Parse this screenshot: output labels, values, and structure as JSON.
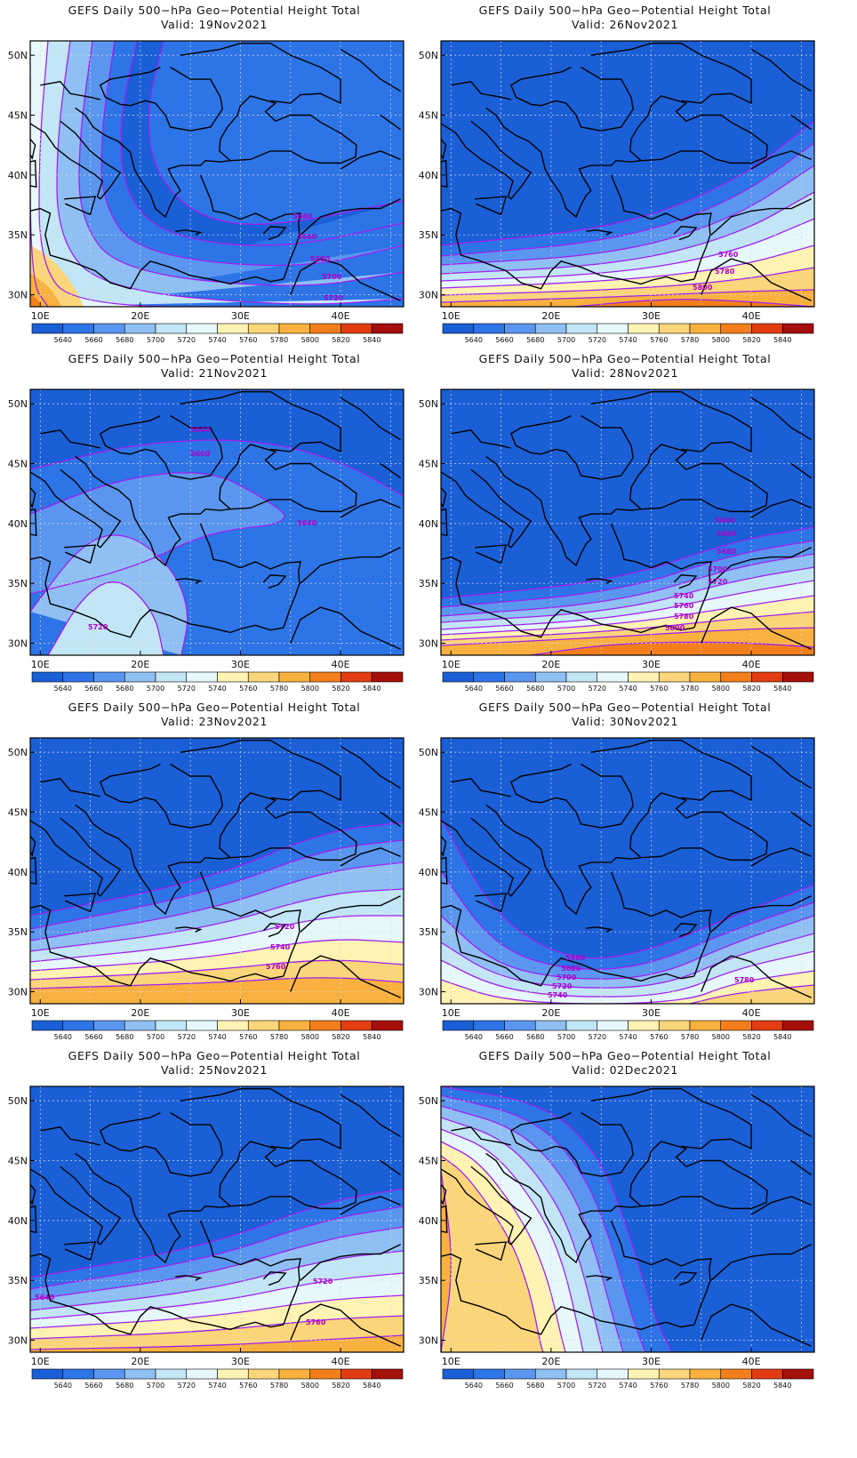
{
  "colors": {
    "ocean_bg": "#1a5fd6",
    "contour_line": "#a020f0",
    "coastline": "#000000",
    "gridline": "#d8d8d8"
  },
  "colorbar": {
    "levels": [
      "5640",
      "5660",
      "5680",
      "5700",
      "5720",
      "5740",
      "5760",
      "5780",
      "5800",
      "5820",
      "5840"
    ],
    "colors": [
      "#1a5fd6",
      "#2d74e6",
      "#5a96ef",
      "#8fbff3",
      "#c2e6f6",
      "#e6f8fb",
      "#fff3b3",
      "#fbd57a",
      "#f8b13f",
      "#f27f1c",
      "#e23c12",
      "#a50f0c"
    ]
  },
  "axes": {
    "lon_labels": [
      "10E",
      "20E",
      "30E",
      "40E"
    ],
    "lat_labels": [
      "50N",
      "45N",
      "40N",
      "35N",
      "30N"
    ]
  },
  "panels": [
    {
      "title": "GEFS Daily 500−hPa Geo−Potential Height Total",
      "valid": "Valid: 19Nov2021",
      "contour_labels": [
        "5640",
        "5660",
        "5680",
        "5700",
        "5720"
      ]
    },
    {
      "title": "GEFS Daily 500−hPa Geo−Potential Height Total",
      "valid": "Valid: 26Nov2021",
      "contour_labels": [
        "5760",
        "5780",
        "5800"
      ]
    },
    {
      "title": "GEFS Daily 500−hPa Geo−Potential Height Total",
      "valid": "Valid: 21Nov2021",
      "contour_labels": [
        "5640",
        "5660",
        "5640",
        "5720"
      ]
    },
    {
      "title": "GEFS Daily 500−hPa Geo−Potential Height Total",
      "valid": "Valid: 28Nov2021",
      "contour_labels": [
        "5640",
        "5660",
        "5680",
        "5700",
        "5720",
        "5740",
        "5760",
        "5780",
        "5800"
      ]
    },
    {
      "title": "GEFS Daily 500−hPa Geo−Potential Height Total",
      "valid": "Valid: 23Nov2021",
      "contour_labels": [
        "5720",
        "5740",
        "5760"
      ]
    },
    {
      "title": "GEFS Daily 500−hPa Geo−Potential Height Total",
      "valid": "Valid: 30Nov2021",
      "contour_labels": [
        "5660",
        "5680",
        "5700",
        "5720",
        "5740",
        "5780"
      ]
    },
    {
      "title": "GEFS Daily 500−hPa Geo−Potential Height Total",
      "valid": "Valid: 25Nov2021",
      "contour_labels": [
        "5640",
        "5720",
        "5760"
      ]
    },
    {
      "title": "GEFS Daily 500−hPa Geo−Potential Height Total",
      "valid": "Valid: 02Dec2021",
      "contour_labels": []
    }
  ]
}
